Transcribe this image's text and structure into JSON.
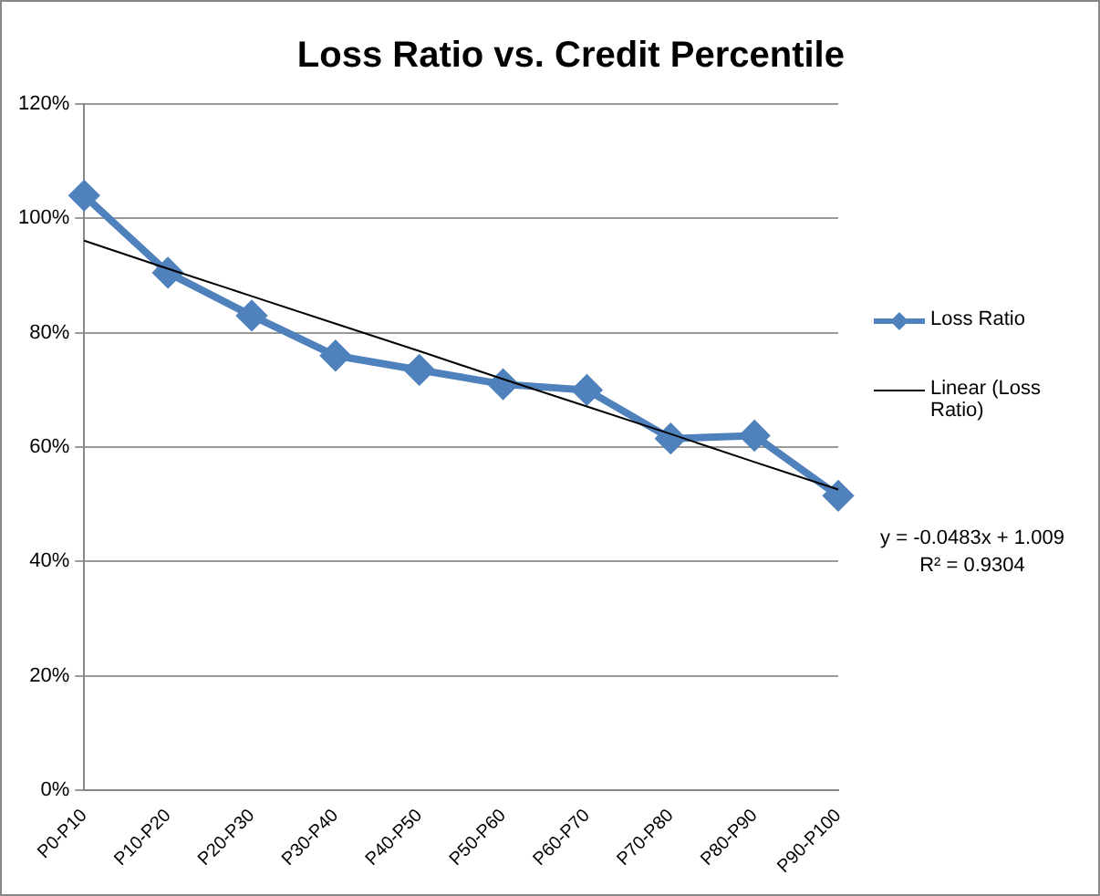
{
  "chart_data": {
    "type": "line",
    "title": "Loss Ratio vs. Credit Percentile",
    "categories": [
      "P0-P10",
      "P10-P20",
      "P20-P30",
      "P30-P40",
      "P40-P50",
      "P50-P60",
      "P60-P70",
      "P70-P80",
      "P80-P90",
      "P90-P100"
    ],
    "series": [
      {
        "name": "Loss Ratio",
        "color": "#4f81bd",
        "marker": "diamond",
        "values": [
          104,
          90.5,
          83,
          76,
          73.5,
          71,
          70,
          61.5,
          62,
          51.5
        ]
      },
      {
        "name": "Linear (Loss Ratio)",
        "color": "#000000",
        "marker": "none",
        "values": [
          96.1,
          91.2,
          86.4,
          81.6,
          76.8,
          71.9,
          67.1,
          62.3,
          57.4,
          52.6
        ]
      }
    ],
    "ylim": [
      0,
      120
    ],
    "yticks": [
      {
        "value": 0,
        "label": "0%"
      },
      {
        "value": 20,
        "label": "20%"
      },
      {
        "value": 40,
        "label": "40%"
      },
      {
        "value": 60,
        "label": "60%"
      },
      {
        "value": 80,
        "label": "80%"
      },
      {
        "value": 100,
        "label": "100%"
      },
      {
        "value": 120,
        "label": "120%"
      }
    ],
    "grid": "y",
    "legend": "right",
    "annotations": [
      "y = -0.0483x + 1.009",
      "R² = 0.9304"
    ]
  }
}
